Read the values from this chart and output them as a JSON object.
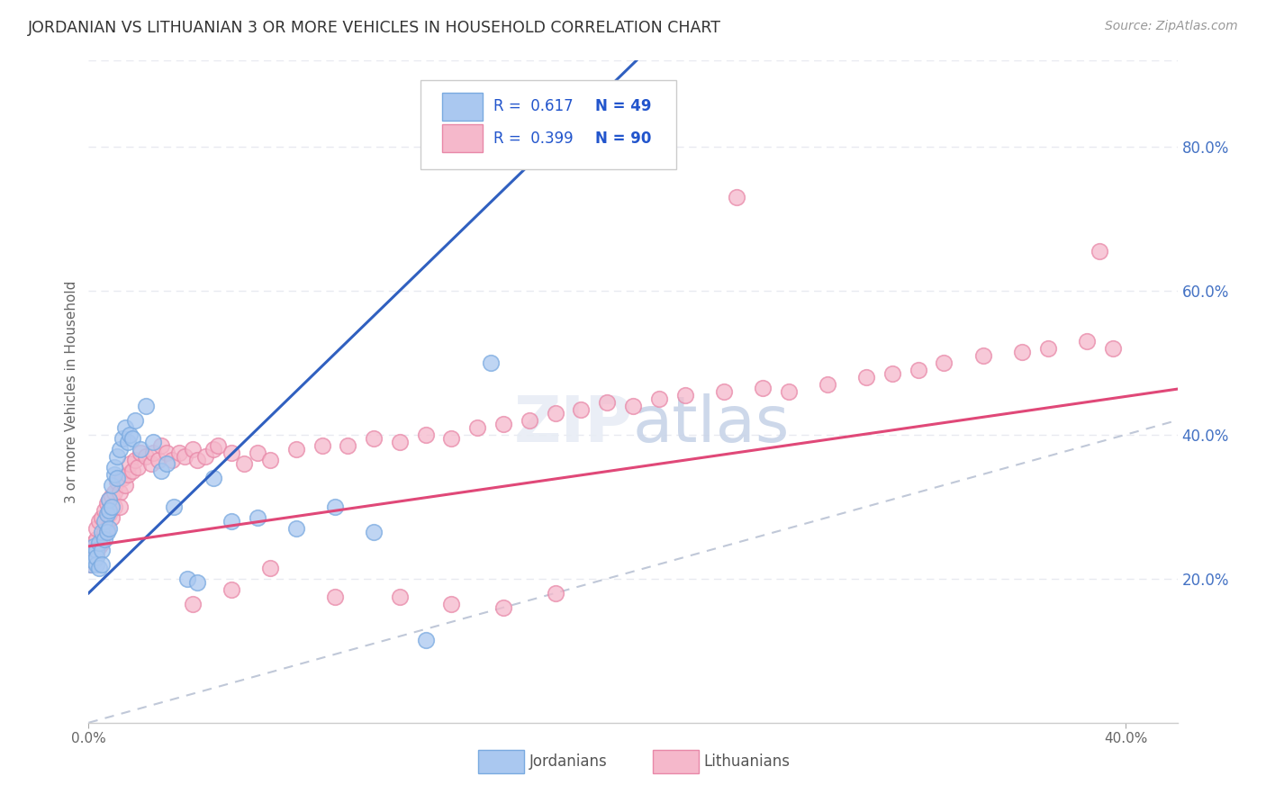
{
  "title": "JORDANIAN VS LITHUANIAN 3 OR MORE VEHICLES IN HOUSEHOLD CORRELATION CHART",
  "source": "Source: ZipAtlas.com",
  "ylabel": "3 or more Vehicles in Household",
  "xlim": [
    0.0,
    0.42
  ],
  "ylim": [
    0.0,
    0.92
  ],
  "xticks": [
    0.0,
    0.4
  ],
  "xticklabels": [
    "0.0%",
    "40.0%"
  ],
  "yticks_right": [
    0.2,
    0.4,
    0.6,
    0.8
  ],
  "ytick_right_labels": [
    "20.0%",
    "40.0%",
    "60.0%",
    "80.0%"
  ],
  "legend_R1": "0.617",
  "legend_N1": "49",
  "legend_R2": "0.399",
  "legend_N2": "90",
  "jordanian_color": "#aac8f0",
  "jordanian_edge_color": "#7aaae0",
  "lithuanian_color": "#f5b8cb",
  "lithuanian_edge_color": "#e888a8",
  "jordanian_line_color": "#3060c0",
  "lithuanian_line_color": "#e04878",
  "ref_line_color": "#c0c8d8",
  "background_color": "#ffffff",
  "grid_color": "#e8eaf0",
  "grid_style": "--",
  "jord_slope": 3.5,
  "jord_intercept": 0.18,
  "lith_slope": 0.52,
  "lith_intercept": 0.245,
  "jordanians_x": [
    0.001,
    0.001,
    0.002,
    0.002,
    0.003,
    0.003,
    0.003,
    0.004,
    0.004,
    0.005,
    0.005,
    0.005,
    0.006,
    0.006,
    0.007,
    0.007,
    0.008,
    0.008,
    0.008,
    0.009,
    0.009,
    0.01,
    0.01,
    0.011,
    0.011,
    0.012,
    0.013,
    0.014,
    0.015,
    0.016,
    0.017,
    0.018,
    0.02,
    0.022,
    0.025,
    0.028,
    0.03,
    0.033,
    0.038,
    0.042,
    0.048,
    0.055,
    0.065,
    0.08,
    0.095,
    0.11,
    0.13,
    0.155,
    0.17
  ],
  "jordanians_y": [
    0.235,
    0.22,
    0.245,
    0.225,
    0.24,
    0.22,
    0.23,
    0.25,
    0.215,
    0.265,
    0.24,
    0.22,
    0.28,
    0.255,
    0.29,
    0.265,
    0.31,
    0.295,
    0.27,
    0.33,
    0.3,
    0.345,
    0.355,
    0.37,
    0.34,
    0.38,
    0.395,
    0.41,
    0.39,
    0.4,
    0.395,
    0.42,
    0.38,
    0.44,
    0.39,
    0.35,
    0.36,
    0.3,
    0.2,
    0.195,
    0.34,
    0.28,
    0.285,
    0.27,
    0.3,
    0.265,
    0.115,
    0.5,
    0.84
  ],
  "lithuanians_x": [
    0.001,
    0.001,
    0.002,
    0.002,
    0.003,
    0.003,
    0.003,
    0.004,
    0.004,
    0.005,
    0.005,
    0.005,
    0.006,
    0.006,
    0.007,
    0.007,
    0.008,
    0.008,
    0.009,
    0.009,
    0.01,
    0.01,
    0.011,
    0.012,
    0.012,
    0.013,
    0.014,
    0.015,
    0.016,
    0.017,
    0.018,
    0.019,
    0.02,
    0.022,
    0.024,
    0.025,
    0.027,
    0.028,
    0.03,
    0.032,
    0.035,
    0.037,
    0.04,
    0.042,
    0.045,
    0.048,
    0.05,
    0.055,
    0.06,
    0.065,
    0.07,
    0.08,
    0.09,
    0.1,
    0.11,
    0.12,
    0.13,
    0.14,
    0.15,
    0.16,
    0.17,
    0.18,
    0.19,
    0.2,
    0.21,
    0.22,
    0.23,
    0.245,
    0.26,
    0.27,
    0.285,
    0.3,
    0.31,
    0.32,
    0.33,
    0.345,
    0.36,
    0.37,
    0.385,
    0.395,
    0.25,
    0.14,
    0.18,
    0.12,
    0.07,
    0.055,
    0.04,
    0.095,
    0.16,
    0.39
  ],
  "lithuanians_y": [
    0.24,
    0.22,
    0.25,
    0.225,
    0.255,
    0.235,
    0.27,
    0.245,
    0.28,
    0.25,
    0.285,
    0.255,
    0.295,
    0.265,
    0.305,
    0.27,
    0.29,
    0.31,
    0.285,
    0.315,
    0.3,
    0.32,
    0.335,
    0.32,
    0.3,
    0.34,
    0.33,
    0.345,
    0.36,
    0.35,
    0.365,
    0.355,
    0.375,
    0.37,
    0.36,
    0.375,
    0.365,
    0.385,
    0.375,
    0.365,
    0.375,
    0.37,
    0.38,
    0.365,
    0.37,
    0.38,
    0.385,
    0.375,
    0.36,
    0.375,
    0.365,
    0.38,
    0.385,
    0.385,
    0.395,
    0.39,
    0.4,
    0.395,
    0.41,
    0.415,
    0.42,
    0.43,
    0.435,
    0.445,
    0.44,
    0.45,
    0.455,
    0.46,
    0.465,
    0.46,
    0.47,
    0.48,
    0.485,
    0.49,
    0.5,
    0.51,
    0.515,
    0.52,
    0.53,
    0.52,
    0.73,
    0.165,
    0.18,
    0.175,
    0.215,
    0.185,
    0.165,
    0.175,
    0.16,
    0.655
  ]
}
